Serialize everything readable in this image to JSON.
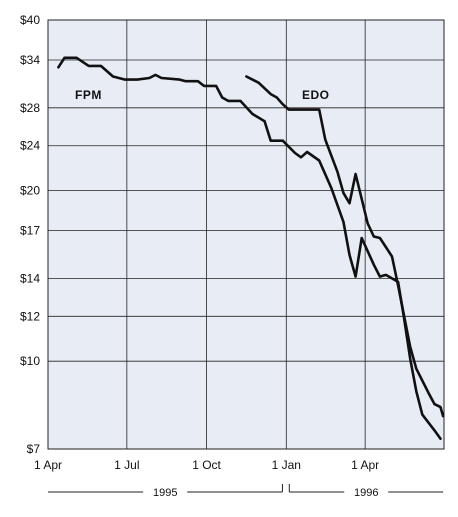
{
  "chart_data": {
    "type": "line",
    "title": "",
    "xlabel": "",
    "ylabel": "",
    "y_scale": "log",
    "ylim": [
      7,
      40
    ],
    "y_ticks": [
      {
        "value": 40,
        "label": "$40"
      },
      {
        "value": 34,
        "label": "$34"
      },
      {
        "value": 28,
        "label": "$28"
      },
      {
        "value": 24,
        "label": "$24"
      },
      {
        "value": 20,
        "label": "$20"
      },
      {
        "value": 17,
        "label": "$17"
      },
      {
        "value": 14,
        "label": "$14"
      },
      {
        "value": 12,
        "label": "$12"
      },
      {
        "value": 10,
        "label": "$10"
      },
      {
        "value": 7,
        "label": "$7"
      }
    ],
    "x_range": [
      "1995-04-01",
      "1996-06-30"
    ],
    "x_ticks": [
      {
        "date": "1995-04-01",
        "label": "1 Apr"
      },
      {
        "date": "1995-07-01",
        "label": "1 Jul"
      },
      {
        "date": "1995-10-01",
        "label": "1 Oct"
      },
      {
        "date": "1996-01-01",
        "label": "1 Jan"
      },
      {
        "date": "1996-04-01",
        "label": "1 Apr"
      }
    ],
    "grid": true,
    "year_labels": [
      {
        "label": "1995",
        "start": "1995-04-01",
        "end": "1995-12-31"
      },
      {
        "label": "1996",
        "start": "1996-01-01",
        "end": "1996-06-30"
      }
    ],
    "series": [
      {
        "name": "FPM",
        "points": [
          [
            "1995-04-13",
            33.0
          ],
          [
            "1995-04-20",
            34.3
          ],
          [
            "1995-05-04",
            34.3
          ],
          [
            "1995-05-18",
            33.2
          ],
          [
            "1995-06-01",
            33.2
          ],
          [
            "1995-06-15",
            31.8
          ],
          [
            "1995-06-29",
            31.4
          ],
          [
            "1995-07-13",
            31.4
          ],
          [
            "1995-07-27",
            31.6
          ],
          [
            "1995-08-03",
            32.0
          ],
          [
            "1995-08-10",
            31.6
          ],
          [
            "1995-08-31",
            31.4
          ],
          [
            "1995-09-07",
            31.2
          ],
          [
            "1995-09-21",
            31.2
          ],
          [
            "1995-09-28",
            30.6
          ],
          [
            "1995-10-12",
            30.6
          ],
          [
            "1995-10-19",
            29.2
          ],
          [
            "1995-10-26",
            28.8
          ],
          [
            "1995-11-09",
            28.8
          ],
          [
            "1995-11-23",
            27.3
          ],
          [
            "1995-12-07",
            26.5
          ],
          [
            "1995-12-14",
            24.5
          ],
          [
            "1995-12-28",
            24.5
          ],
          [
            "1996-01-11",
            23.3
          ],
          [
            "1996-01-18",
            22.9
          ],
          [
            "1996-01-25",
            23.4
          ],
          [
            "1996-02-08",
            22.6
          ],
          [
            "1996-02-22",
            20.2
          ],
          [
            "1996-03-07",
            17.6
          ],
          [
            "1996-03-14",
            15.4
          ],
          [
            "1996-03-21",
            14.1
          ],
          [
            "1996-03-28",
            16.5
          ],
          [
            "1996-04-11",
            14.8
          ],
          [
            "1996-04-18",
            14.1
          ],
          [
            "1996-04-25",
            14.2
          ],
          [
            "1996-05-09",
            13.8
          ],
          [
            "1996-05-16",
            11.9
          ],
          [
            "1996-05-23",
            10.1
          ],
          [
            "1996-05-30",
            8.85
          ],
          [
            "1996-06-06",
            8.05
          ],
          [
            "1996-06-20",
            7.55
          ],
          [
            "1996-06-27",
            7.3
          ]
        ]
      },
      {
        "name": "EDO",
        "points": [
          [
            "1995-11-16",
            31.8
          ],
          [
            "1995-11-30",
            31.0
          ],
          [
            "1995-12-14",
            29.6
          ],
          [
            "1995-12-21",
            29.2
          ],
          [
            "1995-12-28",
            28.4
          ],
          [
            "1996-01-04",
            27.8
          ],
          [
            "1996-01-11",
            27.8
          ],
          [
            "1996-01-25",
            27.8
          ],
          [
            "1996-02-08",
            27.8
          ],
          [
            "1996-02-15",
            24.6
          ],
          [
            "1996-02-29",
            21.6
          ],
          [
            "1996-03-07",
            19.8
          ],
          [
            "1996-03-14",
            19.0
          ],
          [
            "1996-03-21",
            21.4
          ],
          [
            "1996-04-04",
            17.5
          ],
          [
            "1996-04-11",
            16.6
          ],
          [
            "1996-04-18",
            16.5
          ],
          [
            "1996-04-25",
            15.9
          ],
          [
            "1996-05-02",
            15.3
          ],
          [
            "1996-05-09",
            13.6
          ],
          [
            "1996-05-23",
            10.6
          ],
          [
            "1996-05-30",
            9.7
          ],
          [
            "1996-06-13",
            8.8
          ],
          [
            "1996-06-20",
            8.4
          ],
          [
            "1996-06-27",
            8.3
          ],
          [
            "1996-06-30",
            8.0
          ]
        ]
      }
    ]
  }
}
